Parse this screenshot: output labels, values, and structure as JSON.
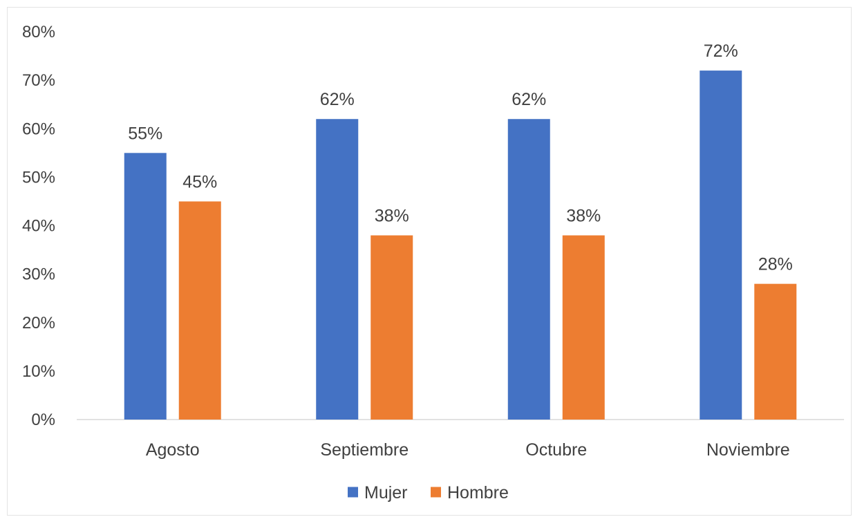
{
  "chart_data": {
    "type": "bar",
    "title": "",
    "xlabel": "",
    "ylabel": "",
    "categories": [
      "Agosto",
      "Septiembre",
      "Octubre",
      "Noviembre"
    ],
    "series": [
      {
        "name": "Mujer",
        "color": "#4472C4",
        "values": [
          55,
          62,
          62,
          72
        ],
        "labels": [
          "55%",
          "62%",
          "62%",
          "72%"
        ]
      },
      {
        "name": "Hombre",
        "color": "#ED7D31",
        "values": [
          45,
          38,
          38,
          28
        ],
        "labels": [
          "45%",
          "38%",
          "38%",
          "28%"
        ]
      }
    ],
    "ylim": [
      0,
      80
    ],
    "yticks": [
      0,
      10,
      20,
      30,
      40,
      50,
      60,
      70,
      80
    ],
    "ytick_labels": [
      "0%",
      "10%",
      "20%",
      "30%",
      "40%",
      "50%",
      "60%",
      "70%",
      "80%"
    ],
    "grid": false,
    "legend_position": "bottom"
  }
}
